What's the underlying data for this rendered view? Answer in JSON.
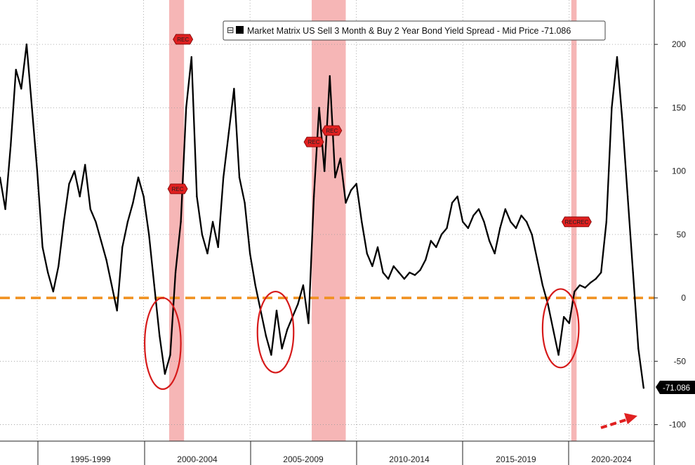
{
  "legend": {
    "toggle_glyph": "⊟",
    "label": "Market Matrix US Sell 3 Month & Buy 2 Year Bond Yield Spread - Mid Price -71.086"
  },
  "last_value_label": "-71.086",
  "colors": {
    "series": "#000000",
    "recession_band": "#f4a9a9",
    "zero_line": "#f0901e",
    "circle": "#d61a1a",
    "rec_marker_fill": "#e02020",
    "arrow": "#e02020",
    "grid": "#9a9a9a"
  },
  "chart_data": {
    "type": "line",
    "title": "",
    "xlabel": "",
    "ylabel": "",
    "ylim": [
      -113,
      235
    ],
    "y_ticks": [
      "200",
      "150",
      "100",
      "50",
      "0",
      "-50",
      "-100"
    ],
    "x_period_labels": [
      "1995-1999",
      "2000-2004",
      "2005-2009",
      "2010-2014",
      "2015-2019",
      "2020-2024"
    ],
    "reference_line": {
      "y": 0,
      "style": "dashed"
    },
    "recession_shading": [
      {
        "start": 2001.2,
        "end": 2001.9
      },
      {
        "start": 2007.9,
        "end": 2009.5
      },
      {
        "start": 2020.1,
        "end": 2020.35
      }
    ],
    "rec_markers": [
      "REC",
      "REC",
      "REC",
      "REC",
      "RECREC"
    ],
    "series": [
      {
        "name": "Market Matrix US Sell 3 Month & Buy 2 Year Bond Yield Spread - Mid Price",
        "points": [
          [
            1993.25,
            95
          ],
          [
            1993.5,
            70
          ],
          [
            1993.75,
            120
          ],
          [
            1994.0,
            180
          ],
          [
            1994.25,
            165
          ],
          [
            1994.5,
            200
          ],
          [
            1994.75,
            150
          ],
          [
            1995.0,
            100
          ],
          [
            1995.25,
            40
          ],
          [
            1995.5,
            20
          ],
          [
            1995.75,
            5
          ],
          [
            1996.0,
            25
          ],
          [
            1996.25,
            60
          ],
          [
            1996.5,
            90
          ],
          [
            1996.75,
            100
          ],
          [
            1997.0,
            80
          ],
          [
            1997.25,
            105
          ],
          [
            1997.5,
            70
          ],
          [
            1997.75,
            60
          ],
          [
            1998.0,
            45
          ],
          [
            1998.25,
            30
          ],
          [
            1998.5,
            10
          ],
          [
            1998.75,
            -10
          ],
          [
            1999.0,
            40
          ],
          [
            1999.25,
            60
          ],
          [
            1999.5,
            75
          ],
          [
            1999.75,
            95
          ],
          [
            2000.0,
            80
          ],
          [
            2000.25,
            50
          ],
          [
            2000.5,
            10
          ],
          [
            2000.75,
            -30
          ],
          [
            2001.0,
            -60
          ],
          [
            2001.25,
            -45
          ],
          [
            2001.5,
            20
          ],
          [
            2001.75,
            60
          ],
          [
            2002.0,
            150
          ],
          [
            2002.25,
            190
          ],
          [
            2002.5,
            80
          ],
          [
            2002.75,
            50
          ],
          [
            2003.0,
            35
          ],
          [
            2003.25,
            60
          ],
          [
            2003.5,
            40
          ],
          [
            2003.75,
            95
          ],
          [
            2004.0,
            130
          ],
          [
            2004.25,
            165
          ],
          [
            2004.5,
            95
          ],
          [
            2004.75,
            75
          ],
          [
            2005.0,
            35
          ],
          [
            2005.25,
            10
          ],
          [
            2005.5,
            -10
          ],
          [
            2005.75,
            -30
          ],
          [
            2006.0,
            -45
          ],
          [
            2006.25,
            -10
          ],
          [
            2006.5,
            -40
          ],
          [
            2006.75,
            -25
          ],
          [
            2007.0,
            -15
          ],
          [
            2007.25,
            -5
          ],
          [
            2007.5,
            10
          ],
          [
            2007.75,
            -20
          ],
          [
            2008.0,
            80
          ],
          [
            2008.25,
            150
          ],
          [
            2008.5,
            100
          ],
          [
            2008.75,
            175
          ],
          [
            2009.0,
            95
          ],
          [
            2009.25,
            110
          ],
          [
            2009.5,
            75
          ],
          [
            2009.75,
            85
          ],
          [
            2010.0,
            90
          ],
          [
            2010.25,
            60
          ],
          [
            2010.5,
            35
          ],
          [
            2010.75,
            25
          ],
          [
            2011.0,
            40
          ],
          [
            2011.25,
            20
          ],
          [
            2011.5,
            15
          ],
          [
            2011.75,
            25
          ],
          [
            2012.0,
            20
          ],
          [
            2012.25,
            15
          ],
          [
            2012.5,
            20
          ],
          [
            2012.75,
            18
          ],
          [
            2013.0,
            22
          ],
          [
            2013.25,
            30
          ],
          [
            2013.5,
            45
          ],
          [
            2013.75,
            40
          ],
          [
            2014.0,
            50
          ],
          [
            2014.25,
            55
          ],
          [
            2014.5,
            75
          ],
          [
            2014.75,
            80
          ],
          [
            2015.0,
            60
          ],
          [
            2015.25,
            55
          ],
          [
            2015.5,
            65
          ],
          [
            2015.75,
            70
          ],
          [
            2016.0,
            60
          ],
          [
            2016.25,
            45
          ],
          [
            2016.5,
            35
          ],
          [
            2016.75,
            55
          ],
          [
            2017.0,
            70
          ],
          [
            2017.25,
            60
          ],
          [
            2017.5,
            55
          ],
          [
            2017.75,
            65
          ],
          [
            2018.0,
            60
          ],
          [
            2018.25,
            50
          ],
          [
            2018.5,
            30
          ],
          [
            2018.75,
            10
          ],
          [
            2019.0,
            -5
          ],
          [
            2019.25,
            -25
          ],
          [
            2019.5,
            -45
          ],
          [
            2019.75,
            -15
          ],
          [
            2020.0,
            -20
          ],
          [
            2020.25,
            5
          ],
          [
            2020.5,
            10
          ],
          [
            2020.75,
            8
          ],
          [
            2021.0,
            12
          ],
          [
            2021.25,
            15
          ],
          [
            2021.5,
            20
          ],
          [
            2021.75,
            60
          ],
          [
            2022.0,
            150
          ],
          [
            2022.25,
            190
          ],
          [
            2022.5,
            140
          ],
          [
            2022.75,
            80
          ],
          [
            2023.0,
            20
          ],
          [
            2023.25,
            -40
          ],
          [
            2023.5,
            -71.086
          ]
        ]
      }
    ]
  }
}
